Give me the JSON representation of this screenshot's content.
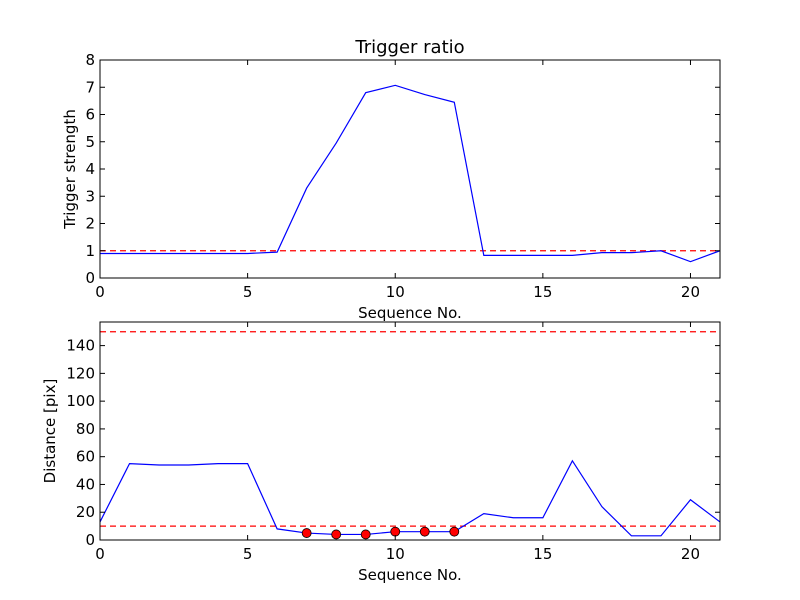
{
  "chart_data": [
    {
      "type": "line",
      "title": "Trigger ratio",
      "xlabel": "Sequence No.",
      "ylabel": "Trigger strength",
      "xlim": [
        0,
        21
      ],
      "ylim": [
        0,
        8
      ],
      "xticks": [
        0,
        5,
        10,
        15,
        20
      ],
      "yticks": [
        0,
        1,
        2,
        3,
        4,
        5,
        6,
        7,
        8
      ],
      "grid": false,
      "series": [
        {
          "color": "#0000ff",
          "style": "solid",
          "x": [
            0,
            1,
            2,
            3,
            4,
            5,
            6,
            7,
            8,
            9,
            10,
            11,
            12,
            13,
            14,
            15,
            16,
            17,
            18,
            19,
            20,
            21
          ],
          "y": [
            0.9,
            0.9,
            0.9,
            0.9,
            0.9,
            0.9,
            0.95,
            3.3,
            4.95,
            6.8,
            7.07,
            6.73,
            6.45,
            0.83,
            0.83,
            0.83,
            0.83,
            0.93,
            0.93,
            1.0,
            0.6,
            1.0
          ]
        }
      ],
      "reference_lines": [
        {
          "y": 1.0,
          "color": "#ff0000",
          "style": "dashed"
        }
      ]
    },
    {
      "type": "line",
      "title": "",
      "xlabel": "Sequence No.",
      "ylabel": "Distance [pix]",
      "xlim": [
        0,
        21
      ],
      "ylim": [
        0,
        157
      ],
      "xticks": [
        0,
        5,
        10,
        15,
        20
      ],
      "yticks": [
        0,
        20,
        40,
        60,
        80,
        100,
        120,
        140
      ],
      "grid": false,
      "series": [
        {
          "color": "#0000ff",
          "style": "solid",
          "x": [
            0,
            1,
            2,
            3,
            4,
            5,
            6,
            7,
            8,
            9,
            10,
            11,
            12,
            13,
            14,
            15,
            16,
            17,
            18,
            19,
            20,
            21
          ],
          "y": [
            13,
            55,
            54,
            54,
            55,
            55,
            8,
            5,
            4,
            4,
            6,
            6,
            6,
            19,
            16,
            16,
            57,
            24,
            3,
            3,
            29,
            13
          ]
        }
      ],
      "markers": {
        "color": "#ff0000",
        "x": [
          7,
          8,
          9,
          10,
          11,
          12
        ],
        "y": [
          5,
          4,
          4,
          6,
          6,
          6
        ]
      },
      "reference_lines": [
        {
          "y": 150,
          "color": "#ff0000",
          "style": "dashed"
        },
        {
          "y": 10,
          "color": "#ff0000",
          "style": "dashed"
        }
      ]
    }
  ]
}
